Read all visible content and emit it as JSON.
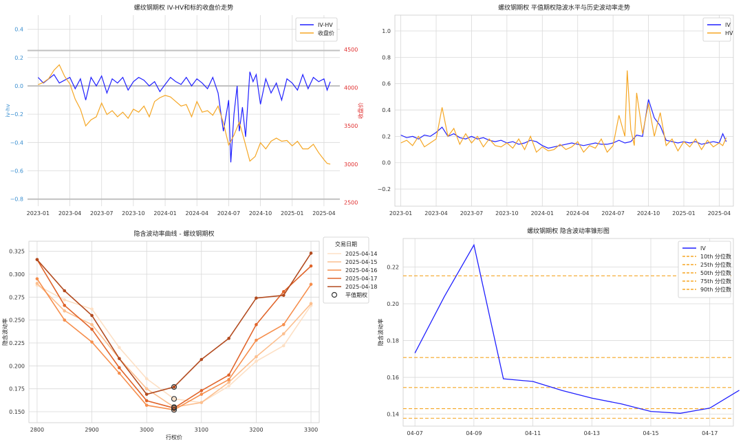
{
  "colors": {
    "blue": "#1f1fff",
    "orange": "#f5a623",
    "red_axis": "#e03030",
    "blue_axis": "#3a8fd0",
    "grid": "#d9d9d9",
    "ref_line": "#c0c0c0"
  },
  "chart_data": [
    {
      "id": "ivhv",
      "type": "line",
      "title": "螺纹钢期权 IV-HV和标的收盘价走势",
      "ylabel": "iv-hv",
      "ylabel_right": "收盘价",
      "ylim": [
        -0.85,
        0.5
      ],
      "ylim_right": [
        2450,
        4950
      ],
      "yticks": [
        0.4,
        0.2,
        0.0,
        -0.2,
        -0.4,
        -0.6,
        -0.8
      ],
      "ytick_labels": [
        "0.4",
        "0.2",
        "0.0",
        "−0.2",
        "−0.4",
        "−0.6",
        "−0.8"
      ],
      "yticks_right": [
        4500,
        4000,
        3500,
        3000,
        2500
      ],
      "ytick_labels_right": [
        "4500",
        "4000",
        "3500",
        "3000",
        "2500"
      ],
      "xlim": [
        -1.0,
        28.5
      ],
      "xticks": [
        0,
        3,
        6,
        9,
        12,
        15,
        18,
        21,
        24,
        27
      ],
      "xtick_labels": [
        "2023-01",
        "2023-04",
        "2023-07",
        "2023-10",
        "2024-01",
        "2024-04",
        "2024-07",
        "2024-10",
        "2025-01",
        "2025-04"
      ],
      "legend": [
        "IV-HV",
        "收盘价"
      ],
      "legend_loc": "top-right",
      "series": [
        {
          "name": "IV-HV",
          "axis": "left",
          "color": "blue",
          "x": [
            0,
            0.5,
            1,
            1.5,
            2,
            2.5,
            3,
            3.5,
            4,
            4.5,
            5,
            5.5,
            6,
            6.5,
            7,
            7.5,
            8,
            8.5,
            9,
            9.5,
            10,
            10.5,
            11,
            11.5,
            12,
            12.5,
            13,
            13.5,
            14,
            14.5,
            15,
            15.5,
            16,
            16.5,
            17,
            17.5,
            18,
            18.2,
            18.5,
            18.8,
            19,
            19.3,
            19.6,
            20,
            20.3,
            20.6,
            21,
            21.5,
            22,
            22.5,
            23,
            23.5,
            24,
            24.5,
            25,
            25.5,
            26,
            26.5,
            27,
            27.3,
            27.6
          ],
          "values": [
            0.06,
            0.02,
            0.05,
            0.08,
            0.02,
            0.04,
            0.06,
            -0.02,
            0.05,
            -0.1,
            0.06,
            0.0,
            0.07,
            -0.05,
            0.05,
            0.02,
            0.06,
            -0.03,
            0.03,
            0.06,
            0.04,
            0.0,
            0.03,
            -0.04,
            0.01,
            0.06,
            0.03,
            0.01,
            0.06,
            0.0,
            0.05,
            0.02,
            -0.02,
            0.06,
            -0.05,
            -0.32,
            -0.1,
            -0.54,
            -0.2,
            0.0,
            -0.32,
            -0.15,
            -0.36,
            0.1,
            0.03,
            0.08,
            -0.13,
            0.05,
            -0.05,
            0.02,
            -0.1,
            0.05,
            0.02,
            -0.03,
            0.08,
            -0.02,
            0.06,
            0.03,
            0.05,
            -0.03,
            0.03
          ]
        },
        {
          "name": "收盘价",
          "axis": "right",
          "color": "orange",
          "x": [
            0,
            0.5,
            1,
            1.5,
            2,
            2.5,
            3,
            3.5,
            4,
            4.5,
            5,
            5.5,
            6,
            6.5,
            7,
            7.5,
            8,
            8.5,
            9,
            9.5,
            10,
            10.5,
            11,
            11.5,
            12,
            12.5,
            13,
            13.5,
            14,
            14.5,
            15,
            15.5,
            16,
            16.5,
            17,
            17.5,
            18,
            18.5,
            19,
            19.5,
            20,
            20.5,
            21,
            21.5,
            22,
            22.5,
            23,
            23.5,
            24,
            24.5,
            25,
            25.5,
            26,
            26.5,
            27,
            27.3,
            27.6
          ],
          "values": [
            4040,
            4070,
            4120,
            4230,
            4300,
            4150,
            4050,
            3850,
            3720,
            3500,
            3580,
            3620,
            3800,
            3650,
            3700,
            3620,
            3680,
            3600,
            3720,
            3680,
            3760,
            3620,
            3820,
            3870,
            3900,
            3880,
            3820,
            3760,
            3780,
            3620,
            3820,
            3680,
            3700,
            3640,
            3760,
            3540,
            3250,
            3380,
            3550,
            3300,
            3040,
            3100,
            3280,
            3200,
            3300,
            3340,
            3300,
            3310,
            3240,
            3300,
            3200,
            3200,
            3260,
            3150,
            3060,
            3010,
            3000
          ]
        }
      ],
      "ref_lines_left": [
        0.0,
        -0.8,
        0.25
      ]
    },
    {
      "id": "ivhv_level",
      "type": "line",
      "title": "螺纹钢期权 平值期权隐波水平与历史波动率走势",
      "ylim": [
        -0.33,
        1.12
      ],
      "yticks": [
        1.0,
        0.8,
        0.6,
        0.4,
        0.2,
        0.0,
        -0.2
      ],
      "ytick_labels": [
        "1.0",
        "0.8",
        "0.6",
        "0.4",
        "0.2",
        "0.0",
        "−0.2"
      ],
      "xlim": [
        -0.5,
        28.2
      ],
      "xticks": [
        0,
        3,
        6,
        9,
        12,
        15,
        18,
        21,
        24,
        27
      ],
      "xtick_labels": [
        "2023-01",
        "2023-04",
        "2023-07",
        "2023-10",
        "2024-01",
        "2024-04",
        "2024-07",
        "2024-10",
        "2025-01",
        "2025-04"
      ],
      "legend": [
        "IV",
        "HV"
      ],
      "legend_loc": "top-right",
      "series": [
        {
          "name": "IV",
          "color": "blue",
          "x": [
            0,
            0.5,
            1,
            1.5,
            2,
            2.5,
            3,
            3.5,
            4,
            4.5,
            5,
            5.5,
            6,
            6.5,
            7,
            7.5,
            8,
            8.5,
            9,
            9.5,
            10,
            10.5,
            11,
            11.5,
            12,
            12.5,
            13,
            13.5,
            14,
            14.5,
            15,
            15.5,
            16,
            16.5,
            17,
            17.5,
            18,
            18.5,
            19,
            19.5,
            20,
            20.5,
            21,
            21.5,
            22,
            22.5,
            23,
            23.5,
            24,
            24.5,
            25,
            25.5,
            26,
            26.5,
            27,
            27.3,
            27.6
          ],
          "values": [
            0.21,
            0.19,
            0.2,
            0.18,
            0.21,
            0.2,
            0.23,
            0.27,
            0.2,
            0.22,
            0.19,
            0.18,
            0.2,
            0.18,
            0.19,
            0.17,
            0.16,
            0.17,
            0.15,
            0.16,
            0.14,
            0.15,
            0.17,
            0.16,
            0.13,
            0.11,
            0.12,
            0.13,
            0.14,
            0.15,
            0.14,
            0.13,
            0.14,
            0.15,
            0.14,
            0.14,
            0.15,
            0.17,
            0.15,
            0.16,
            0.21,
            0.2,
            0.48,
            0.34,
            0.28,
            0.17,
            0.16,
            0.15,
            0.16,
            0.15,
            0.16,
            0.14,
            0.15,
            0.16,
            0.15,
            0.22,
            0.16
          ]
        },
        {
          "name": "HV",
          "color": "orange",
          "x": [
            0,
            0.5,
            1,
            1.5,
            2,
            2.5,
            3,
            3.5,
            4,
            4.5,
            5,
            5.5,
            6,
            6.5,
            7,
            7.5,
            8,
            8.5,
            9,
            9.5,
            10,
            10.5,
            11,
            11.5,
            12,
            12.5,
            13,
            13.5,
            14,
            14.5,
            15,
            15.5,
            16,
            16.5,
            17,
            17.5,
            18,
            18.5,
            19,
            19.2,
            19.5,
            19.8,
            20,
            20.5,
            21,
            21.5,
            22,
            22.5,
            23,
            23.5,
            24,
            24.5,
            25,
            25.5,
            26,
            26.5,
            27,
            27.3,
            27.6
          ],
          "values": [
            0.15,
            0.17,
            0.13,
            0.2,
            0.12,
            0.15,
            0.18,
            0.42,
            0.2,
            0.26,
            0.14,
            0.22,
            0.15,
            0.2,
            0.12,
            0.18,
            0.13,
            0.12,
            0.15,
            0.11,
            0.18,
            0.1,
            0.2,
            0.08,
            0.12,
            0.09,
            0.1,
            0.14,
            0.1,
            0.12,
            0.16,
            0.08,
            0.13,
            0.11,
            0.18,
            0.08,
            0.13,
            0.36,
            0.2,
            0.7,
            0.25,
            0.13,
            0.53,
            0.22,
            0.45,
            0.2,
            0.38,
            0.13,
            0.18,
            0.09,
            0.16,
            0.12,
            0.18,
            0.1,
            0.17,
            0.12,
            0.15,
            0.13,
            0.19
          ]
        }
      ]
    },
    {
      "id": "smile",
      "type": "line",
      "title": "隐含波动率曲线 - 螺纹钢期权",
      "xlabel": "行权价",
      "ylabel": "隐含波动率",
      "ylim": [
        0.138,
        0.336
      ],
      "xlim": [
        2785,
        3315
      ],
      "yticks": [
        0.325,
        0.3,
        0.275,
        0.25,
        0.225,
        0.2,
        0.175,
        0.15
      ],
      "ytick_labels": [
        "0.325",
        "0.300",
        "0.275",
        "0.250",
        "0.225",
        "0.200",
        "0.175",
        "0.150"
      ],
      "xticks": [
        2800,
        2900,
        3000,
        3100,
        3200,
        3300
      ],
      "xtick_labels": [
        "2800",
        "2900",
        "3000",
        "3100",
        "3200",
        "3300"
      ],
      "legend_title": "交易日期",
      "legend_atm": "平值期权",
      "legend_loc": "outside-right-top",
      "strikes": [
        2800,
        2850,
        2900,
        2950,
        3000,
        3050,
        3100,
        3150,
        3200,
        3250,
        3300
      ],
      "series": [
        {
          "name": "2025-04-14",
          "color": "#fde0c5",
          "values": [
            0.288,
            0.272,
            0.262,
            0.22,
            0.186,
            0.164,
            0.16,
            0.178,
            0.205,
            0.222,
            0.266
          ]
        },
        {
          "name": "2025-04-15",
          "color": "#fcbf8f",
          "values": [
            0.29,
            0.26,
            0.245,
            0.208,
            0.175,
            0.155,
            0.16,
            0.182,
            0.21,
            0.235,
            0.268
          ]
        },
        {
          "name": "2025-04-16",
          "color": "#f68e4c",
          "values": [
            0.295,
            0.25,
            0.226,
            0.192,
            0.157,
            0.152,
            0.169,
            0.185,
            0.228,
            0.245,
            0.289
          ]
        },
        {
          "name": "2025-04-17",
          "color": "#e0642a",
          "values": [
            0.316,
            0.266,
            0.24,
            0.198,
            0.162,
            0.154,
            0.173,
            0.19,
            0.245,
            0.281,
            0.309
          ]
        },
        {
          "name": "2025-04-18",
          "color": "#b24a1e",
          "values": [
            0.316,
            0.282,
            0.255,
            0.208,
            0.169,
            0.177,
            0.207,
            0.23,
            0.274,
            0.277,
            0.323
          ]
        }
      ],
      "atm_points": [
        {
          "strike": 3050,
          "iv": 0.164
        },
        {
          "strike": 3050,
          "iv": 0.155
        },
        {
          "strike": 3050,
          "iv": 0.152
        },
        {
          "strike": 3050,
          "iv": 0.154
        },
        {
          "strike": 3050,
          "iv": 0.177
        }
      ]
    },
    {
      "id": "cone",
      "type": "line",
      "title": "螺纹钢期权 隐含波动率锥形图",
      "ylabel": "隐含波动率",
      "ylim": [
        0.1335,
        0.2355
      ],
      "xlim": [
        6.6,
        17.8
      ],
      "yticks": [
        0.22,
        0.2,
        0.18,
        0.16,
        0.14
      ],
      "ytick_labels": [
        "0.22",
        "0.20",
        "0.18",
        "0.16",
        "0.14"
      ],
      "xticks": [
        7,
        9,
        11,
        13,
        15,
        17
      ],
      "xtick_labels": [
        "04-07",
        "04-09",
        "04-11",
        "04-13",
        "04-15",
        "04-17"
      ],
      "legend_loc": "top-right",
      "series": [
        {
          "name": "IV",
          "color": "blue",
          "x": [
            7,
            8,
            9,
            10,
            11,
            12,
            13,
            14,
            15,
            16,
            17,
            18
          ],
          "values": [
            0.1732,
            0.204,
            0.232,
            0.1592,
            0.1578,
            0.1528,
            0.1487,
            0.1456,
            0.1415,
            0.1405,
            0.1433,
            0.153
          ]
        }
      ],
      "quantiles": [
        {
          "name": "10th 分位数",
          "value": 0.1378
        },
        {
          "name": "25th 分位数",
          "value": 0.143
        },
        {
          "name": "50th 分位数",
          "value": 0.1545
        },
        {
          "name": "75th 分位数",
          "value": 0.1708
        },
        {
          "name": "90th 分位数",
          "value": 0.2152
        }
      ]
    }
  ]
}
